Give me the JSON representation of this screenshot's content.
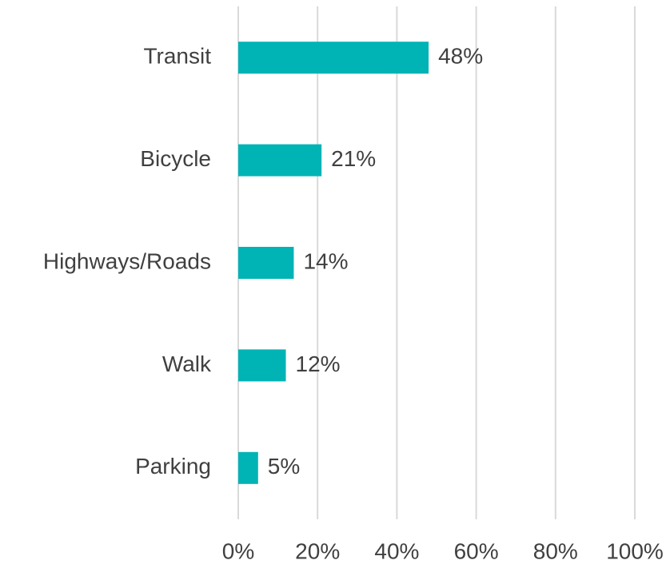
{
  "chart_data": {
    "type": "bar",
    "orientation": "horizontal",
    "categories": [
      "Transit",
      "Bicycle",
      "Highways/Roads",
      "Walk",
      "Parking"
    ],
    "values": [
      48,
      21,
      14,
      12,
      5
    ],
    "value_labels": [
      "48%",
      "21%",
      "14%",
      "12%",
      "5%"
    ],
    "color": "#00b3b5",
    "xlim": [
      0,
      100
    ],
    "xticks": [
      {
        "value": 0,
        "label": "0%"
      },
      {
        "value": 20,
        "label": "20%"
      },
      {
        "value": 40,
        "label": "40%"
      },
      {
        "value": 60,
        "label": "60%"
      },
      {
        "value": 80,
        "label": "80%"
      },
      {
        "value": 100,
        "label": "100%"
      }
    ],
    "grid": true
  }
}
